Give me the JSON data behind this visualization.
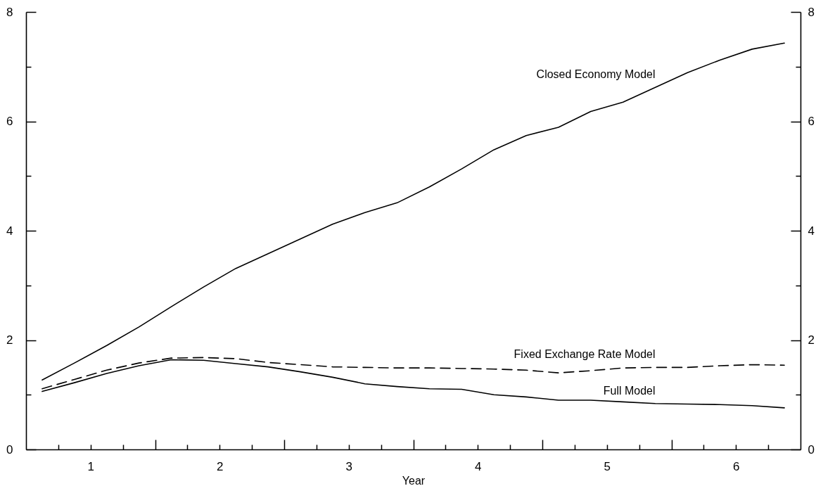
{
  "chart_data": {
    "type": "line",
    "xlabel": "Year",
    "x": [
      0.625,
      0.875,
      1.125,
      1.375,
      1.625,
      1.875,
      2.125,
      2.375,
      2.625,
      2.875,
      3.125,
      3.375,
      3.625,
      3.875,
      4.125,
      4.375,
      4.625,
      4.875,
      5.125,
      5.375,
      5.625,
      5.875,
      6.125,
      6.375
    ],
    "series": [
      {
        "name": "Closed Economy Model",
        "color": "#000000",
        "line_style": "solid",
        "values": [
          1.27,
          1.58,
          1.9,
          2.24,
          2.61,
          2.97,
          3.31,
          3.58,
          3.85,
          4.12,
          4.33,
          4.51,
          4.8,
          5.13,
          5.48,
          5.74,
          5.89,
          6.18,
          6.35,
          6.62,
          6.89,
          7.12,
          7.32,
          7.43
        ]
      },
      {
        "name": "Fixed Exchange Rate Model",
        "color": "#000000",
        "line_style": "dashed",
        "values": [
          1.11,
          1.28,
          1.45,
          1.58,
          1.67,
          1.68,
          1.66,
          1.59,
          1.55,
          1.51,
          1.5,
          1.49,
          1.49,
          1.48,
          1.47,
          1.45,
          1.4,
          1.44,
          1.49,
          1.5,
          1.5,
          1.53,
          1.55,
          1.54
        ]
      },
      {
        "name": "Full Model",
        "color": "#000000",
        "line_style": "solid",
        "values": [
          1.06,
          1.22,
          1.39,
          1.53,
          1.64,
          1.63,
          1.57,
          1.51,
          1.42,
          1.32,
          1.2,
          1.15,
          1.11,
          1.1,
          1.0,
          0.96,
          0.9,
          0.9,
          0.87,
          0.84,
          0.83,
          0.82,
          0.8,
          0.76
        ]
      }
    ],
    "xlim": [
      0.5,
      6.5
    ],
    "xticks": [
      {
        "value": 0.75,
        "label": null
      },
      1,
      {
        "value": 1.25,
        "label": null
      },
      {
        "value": 1.5,
        "label": null
      },
      {
        "value": 1.75,
        "label": null
      },
      2,
      {
        "value": 2.25,
        "label": null
      },
      {
        "value": 2.5,
        "label": null
      },
      {
        "value": 2.75,
        "label": null
      },
      3,
      {
        "value": 3.25,
        "label": null
      },
      {
        "value": 3.5,
        "label": null
      },
      {
        "value": 3.75,
        "label": null
      },
      4,
      {
        "value": 4.25,
        "label": null
      },
      {
        "value": 4.5,
        "label": null
      },
      {
        "value": 4.75,
        "label": null
      },
      5,
      {
        "value": 5.25,
        "label": null
      },
      {
        "value": 5.5,
        "label": null
      },
      {
        "value": 5.75,
        "label": null
      },
      6,
      {
        "value": 6.25,
        "label": null
      }
    ],
    "ylim": [
      0,
      8
    ],
    "yticks": [
      0,
      {
        "value": 1,
        "label": null
      },
      2,
      {
        "value": 3,
        "label": null
      },
      4,
      {
        "value": 5,
        "label": null
      },
      6,
      {
        "value": 7,
        "label": null
      },
      8
    ],
    "y2lim": [
      0,
      8
    ],
    "y2ticks": [
      0,
      {
        "value": 1,
        "label": null
      },
      2,
      {
        "value": 3,
        "label": null
      },
      4,
      {
        "value": 5,
        "label": null
      },
      6,
      {
        "value": 7,
        "label": null
      },
      8
    ]
  }
}
